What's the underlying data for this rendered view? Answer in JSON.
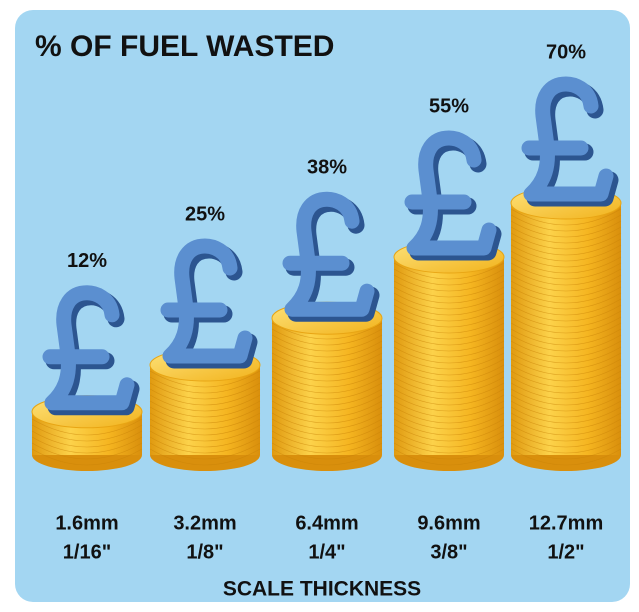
{
  "chart_data": {
    "type": "bar",
    "title": "% OF FUEL WASTED",
    "categories": [
      [
        "1.6mm",
        "1/16\""
      ],
      [
        "3.2mm",
        "1/8\""
      ],
      [
        "6.4mm",
        "1/4\""
      ],
      [
        "9.6mm",
        "3/8\""
      ],
      [
        "12.7mm",
        "1/2\""
      ]
    ],
    "values": [
      12,
      25,
      38,
      55,
      70
    ],
    "value_labels": [
      "12%",
      "25%",
      "38%",
      "55%",
      "70%"
    ],
    "x_label": "SCALE THICKNESS",
    "color": "#f2b31c"
  }
}
